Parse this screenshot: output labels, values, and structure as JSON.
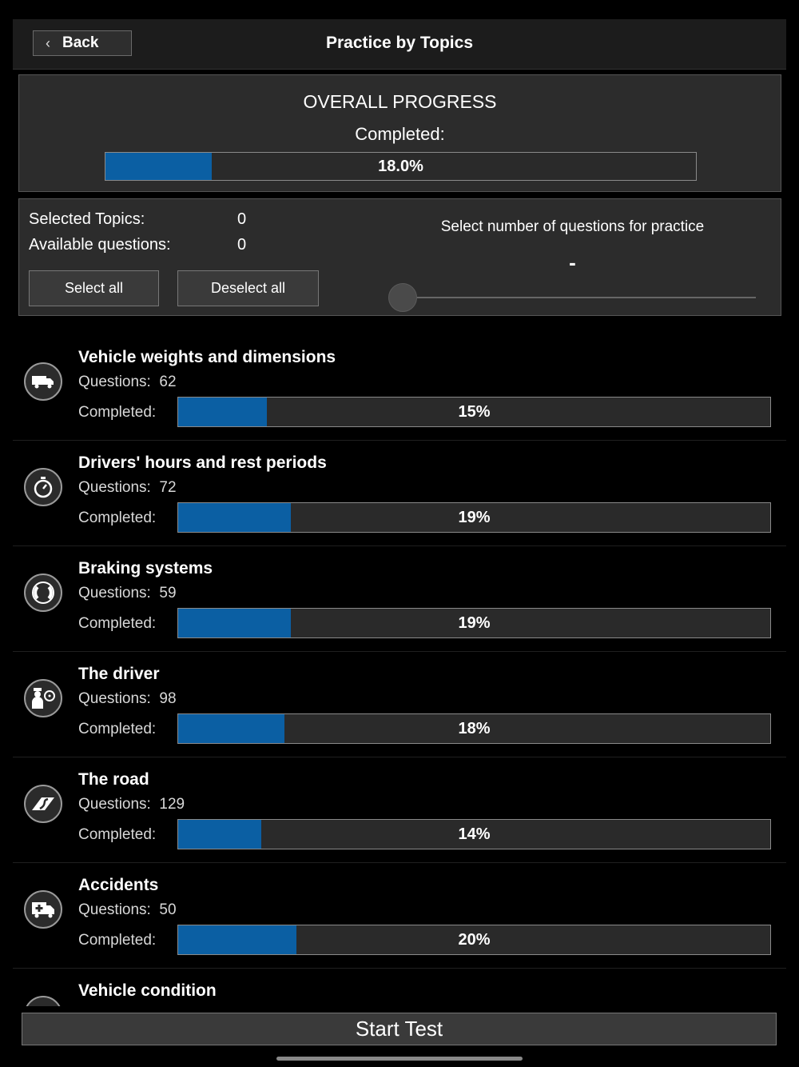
{
  "header": {
    "back_label": "Back",
    "title": "Practice by Topics"
  },
  "overall": {
    "title": "OVERALL PROGRESS",
    "completed_label": "Completed:",
    "progress_text": "18.0%",
    "progress_value": 18.0
  },
  "selection": {
    "selected_topics_label": "Selected Topics:",
    "selected_topics_value": "0",
    "available_questions_label": "Available questions:",
    "available_questions_value": "0",
    "select_all_label": "Select all",
    "deselect_all_label": "Deselect all",
    "questions_label": "Select number of questions for practice",
    "questions_value": "-"
  },
  "topics": [
    {
      "name": "Vehicle weights and dimensions",
      "questions_label": "Questions:",
      "questions": "62",
      "completed_label": "Completed:",
      "percent_text": "15%",
      "percent": 15,
      "icon": "truck-icon"
    },
    {
      "name": "Drivers' hours and rest periods",
      "questions_label": "Questions:",
      "questions": "72",
      "completed_label": "Completed:",
      "percent_text": "19%",
      "percent": 19,
      "icon": "stopwatch-icon"
    },
    {
      "name": "Braking systems",
      "questions_label": "Questions:",
      "questions": "59",
      "completed_label": "Completed:",
      "percent_text": "19%",
      "percent": 19,
      "icon": "brake-icon"
    },
    {
      "name": "The driver",
      "questions_label": "Questions:",
      "questions": "98",
      "completed_label": "Completed:",
      "percent_text": "18%",
      "percent": 18,
      "icon": "driver-icon"
    },
    {
      "name": "The road",
      "questions_label": "Questions:",
      "questions": "129",
      "completed_label": "Completed:",
      "percent_text": "14%",
      "percent": 14,
      "icon": "road-icon"
    },
    {
      "name": "Accidents",
      "questions_label": "Questions:",
      "questions": "50",
      "completed_label": "Completed:",
      "percent_text": "20%",
      "percent": 20,
      "icon": "ambulance-icon"
    },
    {
      "name": "Vehicle condition",
      "icon": "vehicle-condition-icon"
    }
  ],
  "footer": {
    "start_label": "Start Test"
  },
  "colors": {
    "accent": "#0b5fa3",
    "background": "#000000",
    "panel": "#2c2c2c"
  }
}
